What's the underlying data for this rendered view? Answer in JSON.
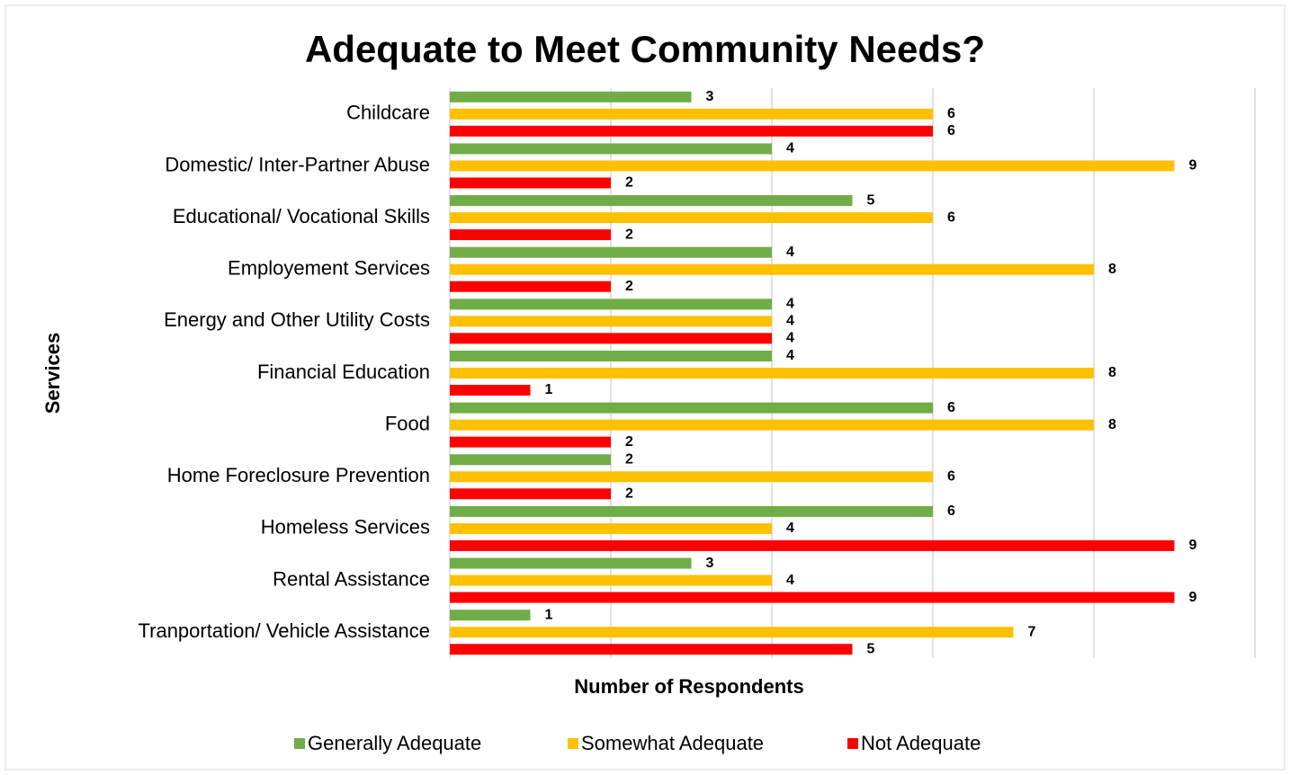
{
  "chart_data": {
    "type": "hbar",
    "title": "Adequate to Meet Community Needs?",
    "xlabel": "Number of Respondents",
    "ylabel": "Services",
    "categories": [
      "Childcare",
      "Domestic/ Inter-Partner Abuse",
      "Educational/ Vocational Skills",
      "Employement Services",
      "Energy and Other Utility Costs",
      "Financial Education",
      "Food",
      "Home Foreclosure Prevention",
      "Homeless Services",
      "Rental Assistance",
      "Tranportation/ Vehicle Assistance"
    ],
    "series": [
      {
        "name": "Generally Adequate",
        "color": "#70ad47",
        "values": [
          3,
          4,
          5,
          4,
          4,
          4,
          6,
          2,
          6,
          3,
          1
        ]
      },
      {
        "name": "Somewhat Adequate",
        "color": "#ffc000",
        "values": [
          6,
          9,
          6,
          8,
          4,
          8,
          8,
          6,
          4,
          4,
          7
        ]
      },
      {
        "name": "Not Adequate",
        "color": "#ff0000",
        "values": [
          6,
          2,
          2,
          2,
          4,
          1,
          2,
          2,
          9,
          9,
          5
        ]
      }
    ],
    "xlim": [
      0,
      10
    ],
    "xticks": [
      0,
      2,
      4,
      6,
      8,
      10
    ],
    "grid": true,
    "legend": "bottom"
  }
}
